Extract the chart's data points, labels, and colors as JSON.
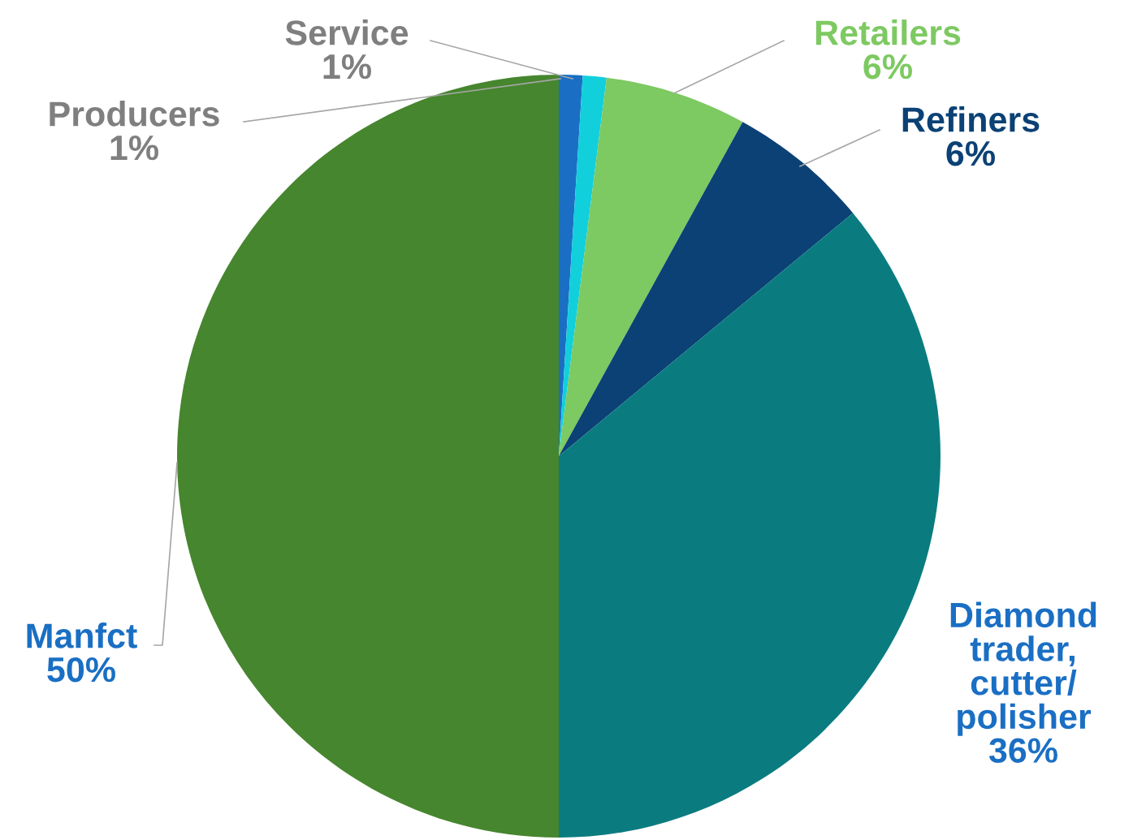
{
  "chart_data": {
    "type": "pie",
    "categories": [
      "Producers",
      "Service",
      "Retailers",
      "Refiners",
      "Diamond\ntrader,\ncutter/\npolisher",
      "Manfct"
    ],
    "values": [
      1,
      1,
      6,
      6,
      36,
      50
    ],
    "value_labels": [
      "1%",
      "1%",
      "6%",
      "6%",
      "36%",
      "50%"
    ],
    "colors": [
      "#1a6fc4",
      "#12cfdc",
      "#7dc962",
      "#0b4175",
      "#0a7c80",
      "#46862e"
    ],
    "legend": false
  }
}
